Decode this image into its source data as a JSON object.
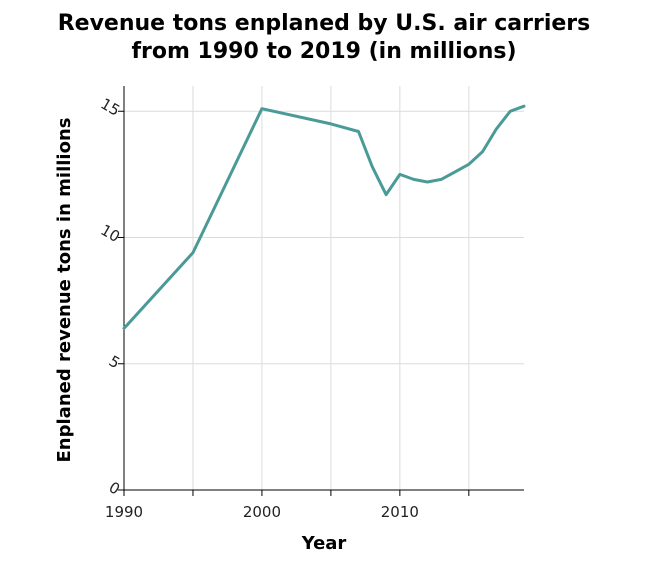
{
  "chart_data": {
    "type": "line",
    "title": "Revenue tons enplaned by U.S. air carriers from 1990 to 2019 (in millions)",
    "title_lines": [
      "Revenue tons enplaned by U.S. air carriers",
      "from 1990 to 2019 (in millions)"
    ],
    "xlabel": "Year",
    "ylabel": "Enplaned revenue tons in millions",
    "xlim": [
      1990,
      2019
    ],
    "ylim": [
      0,
      16
    ],
    "x_ticks": [
      1990,
      1995,
      2000,
      2005,
      2010,
      2015
    ],
    "x_tick_labels": [
      "1990",
      "",
      "2000",
      "",
      "2010",
      ""
    ],
    "y_ticks": [
      0,
      5,
      10,
      15
    ],
    "y_tick_labels": [
      "0",
      "5",
      "10",
      "15"
    ],
    "grid": true,
    "line_color": "#4a9a97",
    "series": [
      {
        "x": [
          1990,
          1995,
          2000,
          2005,
          2007,
          2008,
          2009,
          2010,
          2011,
          2012,
          2013,
          2014,
          2015,
          2016,
          2017,
          2018,
          2019
        ],
        "y": [
          6.4,
          9.4,
          15.1,
          14.5,
          14.2,
          12.8,
          11.7,
          12.5,
          12.3,
          12.2,
          12.3,
          12.6,
          12.9,
          13.4,
          14.3,
          15.0,
          15.2
        ]
      }
    ]
  }
}
